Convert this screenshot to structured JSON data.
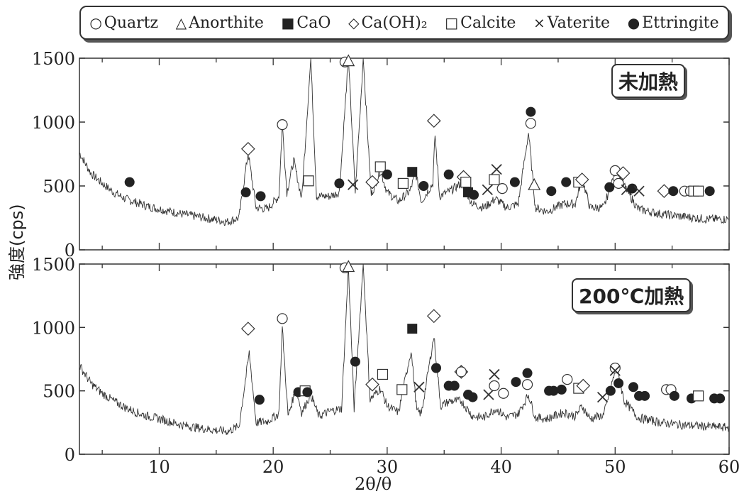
{
  "legend": [
    {
      "symbol": "○",
      "label": "Quartz"
    },
    {
      "symbol": "△",
      "label": "Anorthite"
    },
    {
      "symbol": "■",
      "label": "CaO"
    },
    {
      "symbol": "◇",
      "label": "Ca(OH)₂"
    },
    {
      "symbol": "□",
      "label": "Calcite"
    },
    {
      "symbol": "×",
      "label": "Vaterite"
    },
    {
      "symbol": "●",
      "label": "Ettringite"
    }
  ],
  "axes": {
    "ylabel": "強度(cps)",
    "xlabel": "2θ/θ"
  },
  "chart_data": [
    {
      "type": "line",
      "panel_label": "未加熱",
      "xlim": [
        3,
        60
      ],
      "ylim": [
        0,
        1500
      ],
      "xticks": [
        10,
        20,
        30,
        40,
        50,
        60
      ],
      "yticks": [
        0,
        500,
        1000,
        1500
      ],
      "series": [
        {
          "values": [
            [
              3,
              760
            ],
            [
              4,
              600
            ],
            [
              5,
              520
            ],
            [
              6,
              450
            ],
            [
              7,
              400
            ],
            [
              8,
              370
            ],
            [
              9,
              340
            ],
            [
              10,
              320
            ],
            [
              12,
              280
            ],
            [
              14,
              250
            ],
            [
              16,
              220
            ],
            [
              17,
              250
            ],
            [
              17.8,
              760
            ],
            [
              18.5,
              330
            ],
            [
              19.5,
              320
            ],
            [
              20.5,
              420
            ],
            [
              20.8,
              980
            ],
            [
              21.2,
              450
            ],
            [
              21.8,
              700
            ],
            [
              22.5,
              400
            ],
            [
              23.3,
              1500
            ],
            [
              23.8,
              420
            ],
            [
              25,
              420
            ],
            [
              25.8,
              450
            ],
            [
              26.6,
              1500
            ],
            [
              27.2,
              450
            ],
            [
              27.9,
              1500
            ],
            [
              28.6,
              430
            ],
            [
              29.4,
              620
            ],
            [
              30,
              450
            ],
            [
              31,
              380
            ],
            [
              32,
              460
            ],
            [
              32.5,
              600
            ],
            [
              33,
              380
            ],
            [
              34,
              520
            ],
            [
              34.2,
              900
            ],
            [
              34.6,
              420
            ],
            [
              35.5,
              460
            ],
            [
              36.5,
              520
            ],
            [
              37.5,
              360
            ],
            [
              38.5,
              330
            ],
            [
              39.5,
              400
            ],
            [
              40.5,
              330
            ],
            [
              41.5,
              360
            ],
            [
              42.4,
              920
            ],
            [
              43,
              330
            ],
            [
              44,
              300
            ],
            [
              45.5,
              360
            ],
            [
              46.5,
              360
            ],
            [
              47.1,
              560
            ],
            [
              47.8,
              330
            ],
            [
              49,
              330
            ],
            [
              50.1,
              640
            ],
            [
              50.8,
              500
            ],
            [
              52,
              320
            ],
            [
              54,
              280
            ],
            [
              56,
              260
            ],
            [
              58,
              240
            ],
            [
              60,
              240
            ]
          ]
        }
      ],
      "markers": [
        {
          "phase": "Ettringite",
          "x": 7.4,
          "y": 530
        },
        {
          "phase": "Ettringite",
          "x": 17.6,
          "y": 450
        },
        {
          "phase": "Calcium hydroxide",
          "x": 17.8,
          "y": 790
        },
        {
          "phase": "Ettringite",
          "x": 18.9,
          "y": 420
        },
        {
          "phase": "Quartz",
          "x": 20.8,
          "y": 980
        },
        {
          "phase": "Calcite",
          "x": 23.1,
          "y": 540
        },
        {
          "phase": "Ettringite",
          "x": 25.8,
          "y": 520
        },
        {
          "phase": "Quartz",
          "x": 26.3,
          "y": 1470
        },
        {
          "phase": "Anorthite",
          "x": 26.6,
          "y": 1480
        },
        {
          "phase": "Vaterite",
          "x": 27.0,
          "y": 510
        },
        {
          "phase": "Calcium hydroxide",
          "x": 28.7,
          "y": 530
        },
        {
          "phase": "Calcite",
          "x": 29.4,
          "y": 650
        },
        {
          "phase": "Ettringite",
          "x": 30.0,
          "y": 590
        },
        {
          "phase": "Calcite",
          "x": 31.4,
          "y": 520
        },
        {
          "phase": "CaO",
          "x": 32.2,
          "y": 610
        },
        {
          "phase": "Ettringite",
          "x": 33.2,
          "y": 500
        },
        {
          "phase": "Ettringite",
          "x": 35.4,
          "y": 590
        },
        {
          "phase": "Calcium hydroxide",
          "x": 34.1,
          "y": 1010
        },
        {
          "phase": "Calcium hydroxide",
          "x": 36.7,
          "y": 570
        },
        {
          "phase": "Calcite",
          "x": 36.9,
          "y": 530
        },
        {
          "phase": "CaO",
          "x": 37.1,
          "y": 450
        },
        {
          "phase": "Ettringite",
          "x": 37.6,
          "y": 430
        },
        {
          "phase": "Vaterite",
          "x": 38.8,
          "y": 470
        },
        {
          "phase": "Vaterite",
          "x": 39.6,
          "y": 630
        },
        {
          "phase": "Calcite",
          "x": 39.4,
          "y": 550
        },
        {
          "phase": "Quartz",
          "x": 40.1,
          "y": 480
        },
        {
          "phase": "Ettringite",
          "x": 41.2,
          "y": 530
        },
        {
          "phase": "Ettringite",
          "x": 42.6,
          "y": 1080
        },
        {
          "phase": "Quartz",
          "x": 42.6,
          "y": 990
        },
        {
          "phase": "Anorthite",
          "x": 42.9,
          "y": 510
        },
        {
          "phase": "Ettringite",
          "x": 44.4,
          "y": 460
        },
        {
          "phase": "Ettringite",
          "x": 45.7,
          "y": 530
        },
        {
          "phase": "Calcite",
          "x": 46.8,
          "y": 530
        },
        {
          "phase": "Calcium hydroxide",
          "x": 47.1,
          "y": 550
        },
        {
          "phase": "Ettringite",
          "x": 49.5,
          "y": 490
        },
        {
          "phase": "Quartz",
          "x": 50.0,
          "y": 620
        },
        {
          "phase": "Quartz",
          "x": 50.3,
          "y": 520
        },
        {
          "phase": "Calcium hydroxide",
          "x": 50.7,
          "y": 600
        },
        {
          "phase": "Vaterite",
          "x": 51.0,
          "y": 470
        },
        {
          "phase": "Ettringite",
          "x": 51.5,
          "y": 480
        },
        {
          "phase": "Vaterite",
          "x": 52.1,
          "y": 460
        },
        {
          "phase": "Calcium hydroxide",
          "x": 54.3,
          "y": 460
        },
        {
          "phase": "Ettringite",
          "x": 55.1,
          "y": 460
        },
        {
          "phase": "Quartz",
          "x": 56.1,
          "y": 460
        },
        {
          "phase": "Quartz",
          "x": 56.6,
          "y": 460
        },
        {
          "phase": "Calcite",
          "x": 56.9,
          "y": 460
        },
        {
          "phase": "Calcite",
          "x": 57.3,
          "y": 460
        },
        {
          "phase": "Ettringite",
          "x": 58.3,
          "y": 460
        }
      ]
    },
    {
      "type": "line",
      "panel_label": "200℃加熱",
      "xlim": [
        3,
        60
      ],
      "ylim": [
        0,
        1500
      ],
      "xticks": [
        10,
        20,
        30,
        40,
        50,
        60
      ],
      "yticks": [
        0,
        500,
        1000,
        1500
      ],
      "series": [
        {
          "values": [
            [
              3,
              700
            ],
            [
              4,
              560
            ],
            [
              5,
              480
            ],
            [
              6,
              420
            ],
            [
              7,
              370
            ],
            [
              8,
              330
            ],
            [
              9,
              300
            ],
            [
              10,
              280
            ],
            [
              12,
              230
            ],
            [
              14,
              200
            ],
            [
              16,
              180
            ],
            [
              17,
              220
            ],
            [
              17.9,
              800
            ],
            [
              18.5,
              250
            ],
            [
              19.5,
              260
            ],
            [
              20.5,
              320
            ],
            [
              20.8,
              1000
            ],
            [
              21.3,
              300
            ],
            [
              22,
              520
            ],
            [
              22.5,
              330
            ],
            [
              23.3,
              470
            ],
            [
              24,
              300
            ],
            [
              25,
              340
            ],
            [
              26,
              360
            ],
            [
              26.6,
              1480
            ],
            [
              27.1,
              360
            ],
            [
              27.9,
              1500
            ],
            [
              28.5,
              430
            ],
            [
              29.4,
              520
            ],
            [
              30,
              380
            ],
            [
              31,
              330
            ],
            [
              32.1,
              820
            ],
            [
              32.6,
              340
            ],
            [
              33,
              320
            ],
            [
              34.1,
              930
            ],
            [
              34.7,
              380
            ],
            [
              35.5,
              420
            ],
            [
              36.5,
              420
            ],
            [
              37.5,
              300
            ],
            [
              38.5,
              290
            ],
            [
              39.5,
              360
            ],
            [
              40.5,
              290
            ],
            [
              41.5,
              320
            ],
            [
              42.4,
              470
            ],
            [
              43,
              290
            ],
            [
              44,
              280
            ],
            [
              45.5,
              330
            ],
            [
              46.5,
              300
            ],
            [
              47.1,
              380
            ],
            [
              47.8,
              280
            ],
            [
              49,
              310
            ],
            [
              50.1,
              690
            ],
            [
              50.8,
              420
            ],
            [
              52,
              290
            ],
            [
              54,
              250
            ],
            [
              56,
              230
            ],
            [
              58,
              220
            ],
            [
              60,
              210
            ]
          ]
        }
      ],
      "markers": [
        {
          "phase": "Calcium hydroxide",
          "x": 17.8,
          "y": 990
        },
        {
          "phase": "Ettringite",
          "x": 18.8,
          "y": 430
        },
        {
          "phase": "Quartz",
          "x": 20.8,
          "y": 1070
        },
        {
          "phase": "Ettringite",
          "x": 22.2,
          "y": 490
        },
        {
          "phase": "Calcite",
          "x": 22.8,
          "y": 500
        },
        {
          "phase": "Ettringite",
          "x": 23.0,
          "y": 490
        },
        {
          "phase": "Quartz",
          "x": 26.3,
          "y": 1470
        },
        {
          "phase": "Anorthite",
          "x": 26.6,
          "y": 1480
        },
        {
          "phase": "Ettringite",
          "x": 27.2,
          "y": 730
        },
        {
          "phase": "Calcium hydroxide",
          "x": 28.7,
          "y": 550
        },
        {
          "phase": "Calcite",
          "x": 29.6,
          "y": 630
        },
        {
          "phase": "Calcite",
          "x": 31.3,
          "y": 510
        },
        {
          "phase": "CaO",
          "x": 32.2,
          "y": 990
        },
        {
          "phase": "Vaterite",
          "x": 32.8,
          "y": 530
        },
        {
          "phase": "Calcium hydroxide",
          "x": 34.1,
          "y": 1090
        },
        {
          "phase": "Ettringite",
          "x": 34.3,
          "y": 680
        },
        {
          "phase": "Ettringite",
          "x": 35.4,
          "y": 540
        },
        {
          "phase": "Ettringite",
          "x": 35.9,
          "y": 540
        },
        {
          "phase": "Calcium hydroxide",
          "x": 36.5,
          "y": 650
        },
        {
          "phase": "Quartz",
          "x": 36.5,
          "y": 650
        },
        {
          "phase": "Ettringite",
          "x": 37.1,
          "y": 470
        },
        {
          "phase": "Ettringite",
          "x": 37.5,
          "y": 450
        },
        {
          "phase": "Vaterite",
          "x": 38.9,
          "y": 470
        },
        {
          "phase": "Vaterite",
          "x": 39.4,
          "y": 630
        },
        {
          "phase": "Quartz",
          "x": 39.4,
          "y": 540
        },
        {
          "phase": "Quartz",
          "x": 40.2,
          "y": 480
        },
        {
          "phase": "Ettringite",
          "x": 41.3,
          "y": 570
        },
        {
          "phase": "Ettringite",
          "x": 42.3,
          "y": 640
        },
        {
          "phase": "Quartz",
          "x": 42.3,
          "y": 550
        },
        {
          "phase": "Ettringite",
          "x": 44.2,
          "y": 500
        },
        {
          "phase": "Ettringite",
          "x": 44.6,
          "y": 500
        },
        {
          "phase": "Ettringite",
          "x": 45.3,
          "y": 510
        },
        {
          "phase": "Quartz",
          "x": 45.8,
          "y": 590
        },
        {
          "phase": "Calcite",
          "x": 46.8,
          "y": 520
        },
        {
          "phase": "Calcium hydroxide",
          "x": 47.2,
          "y": 540
        },
        {
          "phase": "Vaterite",
          "x": 48.9,
          "y": 450
        },
        {
          "phase": "Ettringite",
          "x": 49.6,
          "y": 500
        },
        {
          "phase": "Quartz",
          "x": 50.0,
          "y": 680
        },
        {
          "phase": "Vaterite",
          "x": 50.0,
          "y": 660
        },
        {
          "phase": "Ettringite",
          "x": 50.3,
          "y": 560
        },
        {
          "phase": "Ettringite",
          "x": 51.6,
          "y": 530
        },
        {
          "phase": "Ettringite",
          "x": 52.1,
          "y": 460
        },
        {
          "phase": "Ettringite",
          "x": 52.6,
          "y": 460
        },
        {
          "phase": "Quartz",
          "x": 54.5,
          "y": 510
        },
        {
          "phase": "Quartz",
          "x": 54.9,
          "y": 510
        },
        {
          "phase": "Ettringite",
          "x": 55.2,
          "y": 460
        },
        {
          "phase": "Ettringite",
          "x": 56.7,
          "y": 440
        },
        {
          "phase": "Calcite",
          "x": 57.3,
          "y": 460
        },
        {
          "phase": "Ettringite",
          "x": 58.7,
          "y": 440
        },
        {
          "phase": "Ettringite",
          "x": 59.2,
          "y": 440
        }
      ]
    }
  ]
}
